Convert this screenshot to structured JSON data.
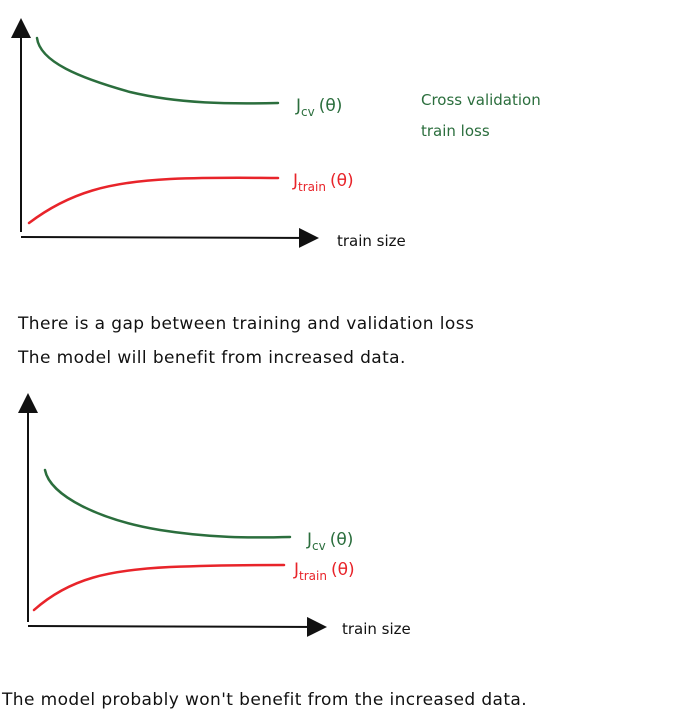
{
  "colors": {
    "cv": "#2b6e3d",
    "train": "#e8242a",
    "axis": "#111111"
  },
  "diagram1": {
    "x_axis_label": "train size",
    "cv_label_main": "J",
    "cv_label_sub": "cv",
    "cv_label_arg": "(θ)",
    "train_label_main": "J",
    "train_label_sub": "train",
    "train_label_arg": "(θ)",
    "legend_line1": "Cross validation",
    "legend_line2": "train loss",
    "caption_line1": "There is a gap between training and validation loss",
    "caption_line2": "The model will benefit from increased data."
  },
  "diagram2": {
    "x_axis_label": "train size",
    "cv_label_main": "J",
    "cv_label_sub": "cv",
    "cv_label_arg": "(θ)",
    "train_label_main": "J",
    "train_label_sub": "train",
    "train_label_arg": "(θ)",
    "caption": "The model probably won't benefit from the increased data."
  }
}
